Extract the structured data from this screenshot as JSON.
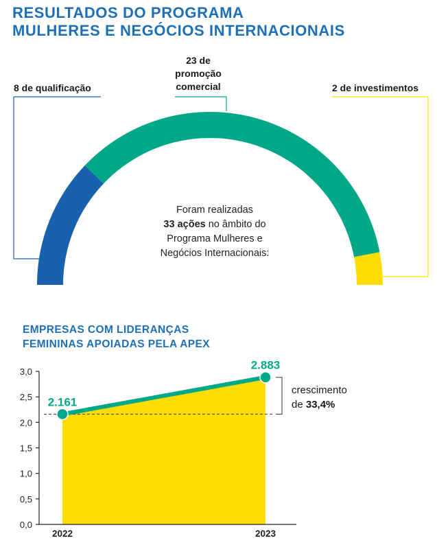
{
  "header": {
    "title_line1": "RESULTADOS DO PROGRAMA",
    "title_line2": "MULHERES E NEGÓCIOS INTERNACIONAIS"
  },
  "colors": {
    "title_blue": "#1d6fb8",
    "qualificacao": "#1761ae",
    "promocao": "#00a887",
    "investimentos": "#ffdd00",
    "area_fill": "#ffdd00",
    "line": "#00a887"
  },
  "chart_data": [
    {
      "type": "pie",
      "variant": "semicircle-donut",
      "total": 33,
      "slices": [
        {
          "label": "8 de qualificação",
          "value": 8
        },
        {
          "label_lines": [
            "23 de",
            "promoção",
            "comercial"
          ],
          "value": 23
        },
        {
          "label": "2 de investimentos",
          "value": 2
        }
      ],
      "center_text": {
        "line1": "Foram realizadas",
        "line2_bold": "33 ações",
        "line2_rest": " no âmbito do",
        "line3": "Programa Mulheres e",
        "line4": "Negócios Internacionais:"
      }
    },
    {
      "type": "area",
      "title_line1": "EMPRESAS COM LIDERANÇAS",
      "title_line2": "FEMININAS APOIADAS PELA APEX",
      "x": [
        "2022",
        "2023"
      ],
      "values": [
        2.161,
        2.883
      ],
      "data_labels": [
        "2.161",
        "2.883"
      ],
      "ylim": [
        0,
        3
      ],
      "yticks": [
        "0,0",
        "0,5",
        "1,0",
        "1,5",
        "2,0",
        "2,5",
        "3,0"
      ],
      "ytick_values": [
        0,
        0.5,
        1,
        1.5,
        2,
        2.5,
        3
      ],
      "reference_line": 2.161,
      "annotation": {
        "line1": "crescimento",
        "line2_prefix": "de ",
        "line2_bold": "33,4%"
      }
    }
  ]
}
